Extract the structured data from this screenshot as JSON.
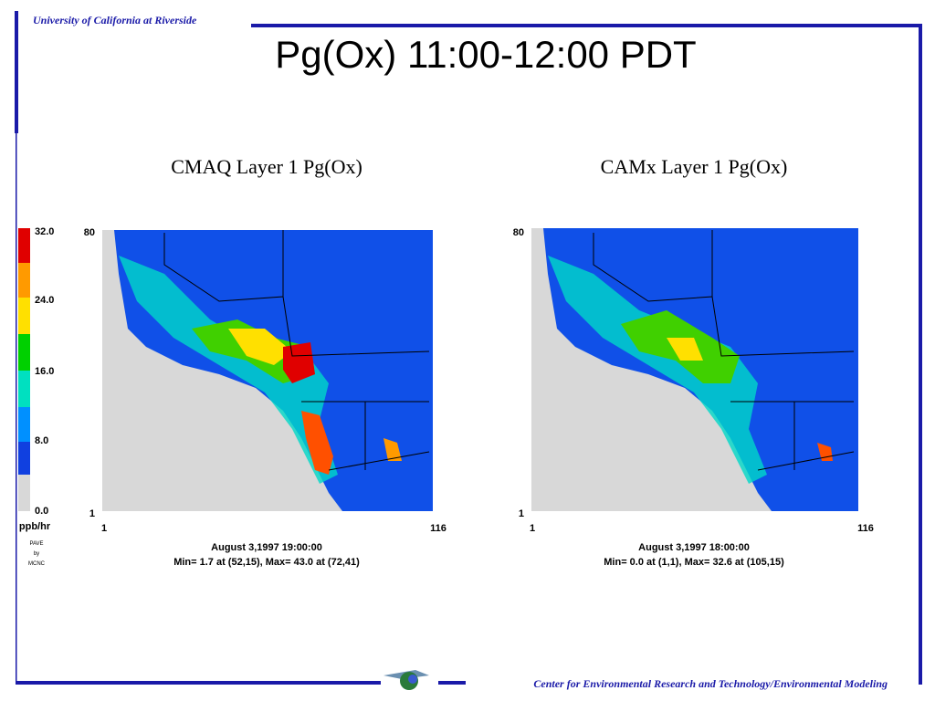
{
  "header": {
    "institution": "University of California at Riverside",
    "title": "Pg(Ox) 11:00-12:00 PDT"
  },
  "legend": {
    "ticks": [
      "32.0",
      "24.0",
      "16.0",
      "8.0",
      "0.0"
    ],
    "unit": "ppb/hr",
    "credit": [
      "PAVE",
      "by",
      "MCNC"
    ]
  },
  "panels": [
    {
      "title": "CMAQ  Layer 1  Pg(Ox)",
      "y_top": "80",
      "y_bottom": "1",
      "x_left": "1",
      "x_right": "116",
      "date": "August 3,1997 19:00:00",
      "stats": "Min=  1.7 at (52,15), Max= 43.0 at (72,41)"
    },
    {
      "title": "CAMx  Layer 1  Pg(Ox)",
      "y_top": "80",
      "y_bottom": "1",
      "x_left": "1",
      "x_right": "116",
      "date": "August 3,1997 18:00:00",
      "stats": "Min=  0.0 at (1,1), Max= 32.6 at (105,15)"
    }
  ],
  "footer": "Center for Environmental Research and Technology/Environmental Modeling"
}
